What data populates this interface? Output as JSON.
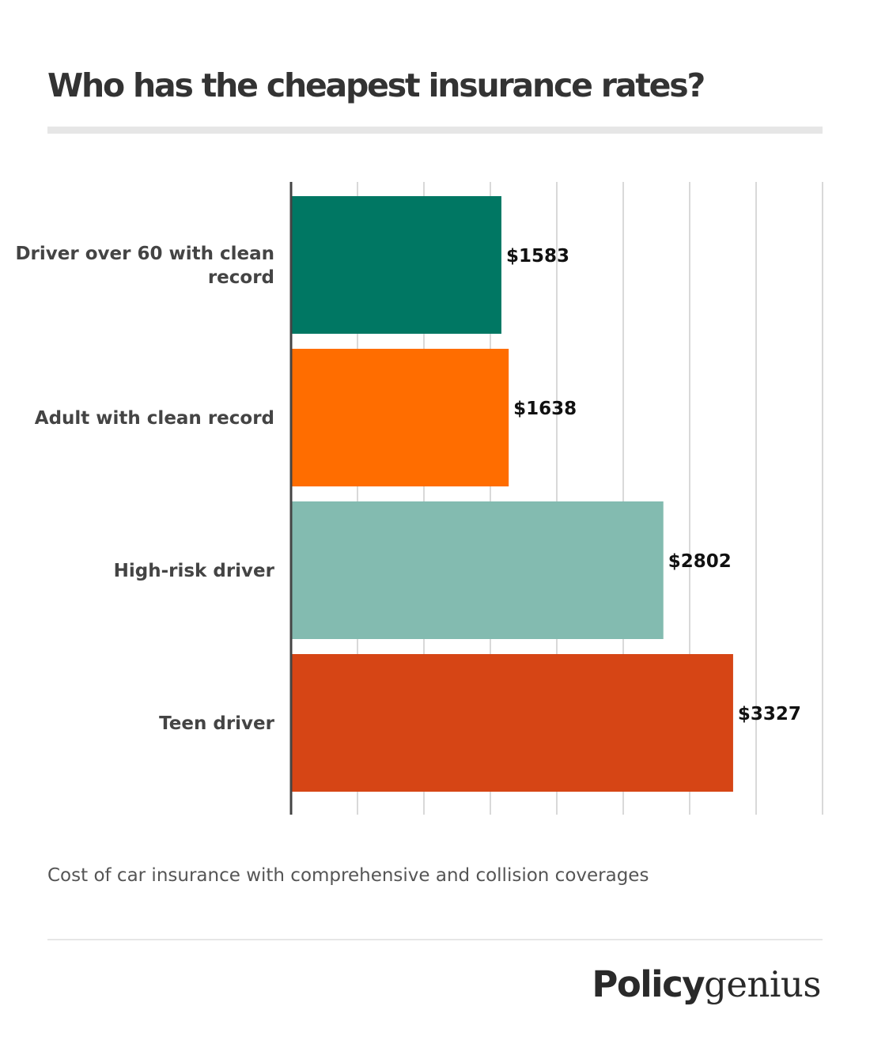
{
  "header": {
    "title": "Who has the cheapest insurance rates?"
  },
  "caption": "Cost of car insurance with comprehensive and collision coverages",
  "logo": {
    "bold": "Policy",
    "regular": "genius"
  },
  "chart_data": {
    "type": "bar",
    "orientation": "horizontal",
    "categories": [
      "Driver over 60 with clean record",
      "Adult with clean record",
      "High-risk driver",
      "Teen driver"
    ],
    "category_label_lines": [
      [
        "Driver over 60 with clean",
        "record"
      ],
      [
        "Adult with clean record"
      ],
      [
        "High-risk driver"
      ],
      [
        "Teen driver"
      ]
    ],
    "values": [
      1583,
      1638,
      2802,
      3327
    ],
    "value_labels": [
      "$1583",
      "$1638",
      "$2802",
      "$3327"
    ],
    "colors": [
      "#007763",
      "#ff6d00",
      "#83bbb0",
      "#d64515"
    ],
    "xlim": [
      0,
      4000
    ],
    "grid": true,
    "xlabel": "",
    "ylabel": ""
  }
}
